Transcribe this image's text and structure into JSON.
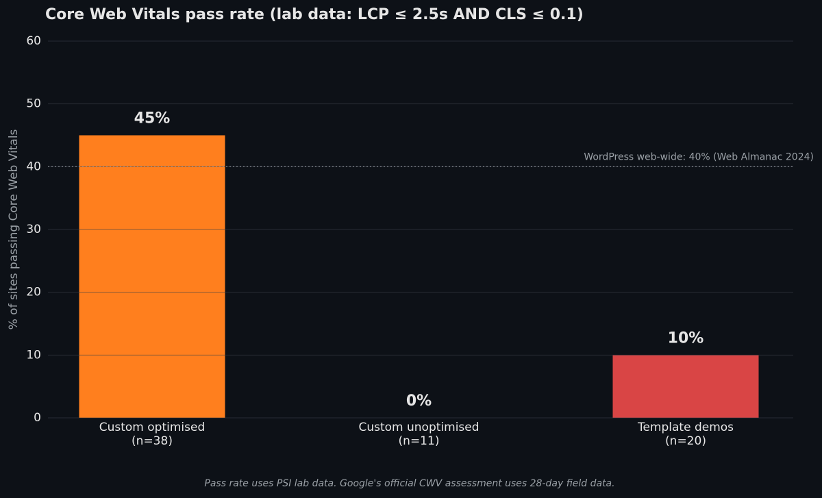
{
  "chart_data": {
    "type": "bar",
    "title": "Core Web Vitals pass rate (lab data: LCP ≤ 2.5s AND CLS ≤ 0.1)",
    "y_label": "% of sites passing Core Web Vitals",
    "categories": [
      [
        "Custom optimised",
        "(n=38)"
      ],
      [
        "Custom unoptimised",
        "(n=11)"
      ],
      [
        "Template demos",
        "(n=20)"
      ]
    ],
    "values": [
      45,
      0,
      10
    ],
    "value_labels": [
      "45%",
      "0%",
      "10%"
    ],
    "colors": [
      "#ff7f1e",
      "#8a8f98",
      "#d94545"
    ],
    "ylim": [
      0,
      60
    ],
    "yticks": [
      0,
      10,
      20,
      30,
      40,
      50,
      60
    ],
    "grid": true,
    "reference_line": {
      "value": 40,
      "label": "WordPress web-wide: 40% (Web Almanac 2024)"
    },
    "footnote": "Pass rate uses PSI lab data. Google's official CWV assessment uses 28-day field data."
  }
}
